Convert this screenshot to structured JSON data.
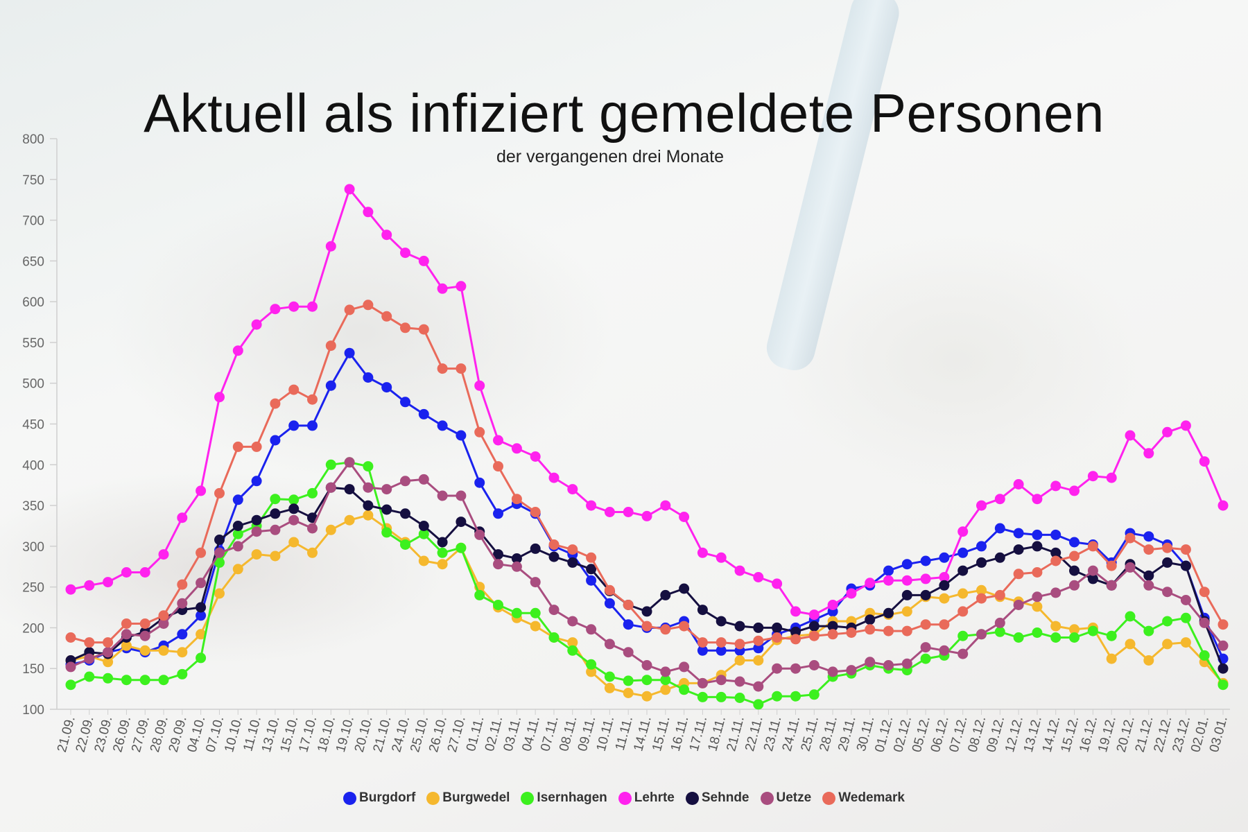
{
  "chart_data": {
    "type": "line",
    "title": "Aktuell als infiziert gemeldete Personen",
    "subtitle": "der vergangenen drei Monate",
    "ylim": [
      100,
      800
    ],
    "yticks": [
      100,
      150,
      200,
      250,
      300,
      350,
      400,
      450,
      500,
      550,
      600,
      650,
      700,
      750,
      800
    ],
    "grid": false,
    "legend": "bottom",
    "categories": [
      "21.09.",
      "22.09.",
      "23.09.",
      "26.09.",
      "27.09.",
      "28.09.",
      "29.09.",
      "04.10.",
      "07.10.",
      "10.10.",
      "11.10.",
      "13.10.",
      "15.10.",
      "17.10.",
      "18.10.",
      "19.10.",
      "20.10.",
      "21.10.",
      "24.10.",
      "25.10.",
      "26.10.",
      "27.10.",
      "01.11.",
      "02.11.",
      "03.11.",
      "04.11.",
      "07.11.",
      "08.11.",
      "09.11.",
      "10.11.",
      "11.11.",
      "14.11.",
      "15.11.",
      "16.11.",
      "17.11.",
      "18.11.",
      "21.11.",
      "22.11.",
      "23.11.",
      "24.11.",
      "25.11.",
      "28.11.",
      "29.11.",
      "30.11.",
      "01.12.",
      "02.12.",
      "05.12.",
      "06.12.",
      "07.12.",
      "08.12.",
      "09.12.",
      "12.12.",
      "13.12.",
      "14.12.",
      "15.12.",
      "16.12.",
      "19.12.",
      "20.12.",
      "21.12.",
      "22.12.",
      "23.12.",
      "02.01.",
      "03.01."
    ],
    "series": [
      {
        "name": "Burgdorf",
        "color": "#1a22ee",
        "values": [
          155,
          160,
          170,
          175,
          170,
          178,
          192,
          215,
          295,
          357,
          380,
          430,
          448,
          448,
          497,
          537,
          507,
          495,
          477,
          462,
          448,
          436,
          378,
          340,
          352,
          340,
          300,
          290,
          258,
          230,
          204,
          200,
          200,
          208,
          172,
          172,
          172,
          175,
          192,
          200,
          210,
          220,
          248,
          252,
          270,
          278,
          282,
          286,
          292,
          300,
          322,
          316,
          314,
          314,
          305,
          302,
          280,
          316,
          312,
          302,
          276,
          212,
          162
        ]
      },
      {
        "name": "Burgwedel",
        "color": "#f5b82e",
        "values": [
          160,
          165,
          158,
          178,
          172,
          172,
          170,
          192,
          242,
          272,
          290,
          288,
          305,
          292,
          320,
          332,
          338,
          322,
          305,
          282,
          278,
          298,
          250,
          225,
          212,
          202,
          188,
          182,
          146,
          126,
          120,
          116,
          124,
          132,
          132,
          142,
          160,
          160,
          185,
          190,
          192,
          208,
          208,
          218,
          216,
          220,
          238,
          236,
          242,
          246,
          238,
          232,
          226,
          202,
          198,
          200,
          162,
          180,
          160,
          180,
          182,
          158,
          132
        ]
      },
      {
        "name": "Isernhagen",
        "color": "#3cf01e",
        "values": [
          130,
          140,
          138,
          136,
          136,
          136,
          143,
          163,
          280,
          315,
          325,
          358,
          357,
          365,
          400,
          403,
          398,
          317,
          302,
          315,
          292,
          298,
          240,
          228,
          218,
          218,
          188,
          172,
          155,
          140,
          135,
          136,
          136,
          124,
          115,
          115,
          114,
          106,
          116,
          116,
          118,
          140,
          144,
          154,
          150,
          148,
          162,
          166,
          190,
          192,
          195,
          188,
          194,
          188,
          188,
          196,
          190,
          214,
          196,
          208,
          212,
          166,
          130
        ]
      },
      {
        "name": "Lehrte",
        "color": "#ff22ee",
        "values": [
          247,
          252,
          256,
          268,
          268,
          290,
          335,
          368,
          483,
          540,
          572,
          591,
          594,
          594,
          668,
          738,
          710,
          682,
          660,
          650,
          616,
          619,
          497,
          430,
          420,
          410,
          384,
          370,
          350,
          342,
          342,
          337,
          350,
          336,
          292,
          286,
          270,
          262,
          254,
          220,
          216,
          228,
          242,
          255,
          258,
          258,
          260,
          262,
          318,
          350,
          358,
          376,
          358,
          374,
          368,
          386,
          384,
          436,
          414,
          440,
          448,
          404,
          350
        ]
      },
      {
        "name": "Sehnde",
        "color": "#150f40",
        "values": [
          160,
          170,
          168,
          188,
          195,
          212,
          222,
          225,
          308,
          325,
          332,
          340,
          346,
          335,
          372,
          370,
          350,
          345,
          340,
          325,
          305,
          330,
          318,
          290,
          285,
          297,
          287,
          280,
          272,
          245,
          228,
          220,
          240,
          248,
          222,
          208,
          202,
          200,
          200,
          195,
          202,
          202,
          200,
          210,
          218,
          240,
          240,
          252,
          270,
          280,
          286,
          296,
          300,
          292,
          270,
          260,
          252,
          278,
          264,
          280,
          276,
          208,
          150
        ]
      },
      {
        "name": "Uetze",
        "color": "#a94d7f",
        "values": [
          152,
          162,
          170,
          192,
          190,
          205,
          230,
          255,
          292,
          300,
          318,
          320,
          332,
          322,
          372,
          403,
          372,
          370,
          380,
          382,
          362,
          362,
          314,
          278,
          275,
          256,
          222,
          208,
          198,
          180,
          170,
          154,
          146,
          152,
          132,
          136,
          134,
          128,
          150,
          150,
          154,
          146,
          148,
          158,
          154,
          156,
          176,
          172,
          168,
          192,
          206,
          228,
          238,
          243,
          252,
          270,
          252,
          274,
          252,
          244,
          234,
          206,
          178
        ]
      },
      {
        "name": "Wedemark",
        "color": "#e96a5a",
        "values": [
          188,
          182,
          182,
          205,
          205,
          215,
          253,
          292,
          365,
          422,
          422,
          475,
          492,
          480,
          546,
          590,
          596,
          582,
          568,
          566,
          518,
          518,
          440,
          398,
          358,
          342,
          302,
          296,
          286,
          246,
          228,
          202,
          198,
          202,
          182,
          182,
          180,
          184,
          188,
          186,
          190,
          192,
          194,
          198,
          196,
          196,
          204,
          204,
          220,
          236,
          240,
          266,
          268,
          282,
          288,
          300,
          276,
          310,
          296,
          298,
          296,
          244,
          204
        ]
      }
    ]
  }
}
